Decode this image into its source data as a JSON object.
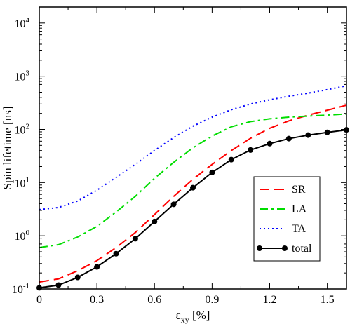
{
  "chart_data": {
    "type": "line",
    "xlabel_main": "ε",
    "xlabel_sub": "xy",
    "xlabel_unit": " [%]",
    "ylabel": "Spin lifetime [ns]",
    "xlim": [
      0,
      1.6
    ],
    "ylim": [
      0.1,
      20000
    ],
    "yscale": "log",
    "grid": false,
    "legend_position": "lower-right",
    "x_ticks": [
      {
        "value": 0,
        "label": "0"
      },
      {
        "value": 0.3,
        "label": "0.3"
      },
      {
        "value": 0.6,
        "label": "0.6"
      },
      {
        "value": 0.9,
        "label": "0.9"
      },
      {
        "value": 1.2,
        "label": "1.2"
      },
      {
        "value": 1.5,
        "label": "1.5"
      }
    ],
    "y_ticks": [
      {
        "value": 0.1,
        "base": "10",
        "exp": "-1"
      },
      {
        "value": 1,
        "base": "10",
        "exp": "0"
      },
      {
        "value": 10,
        "base": "10",
        "exp": "1"
      },
      {
        "value": 100,
        "base": "10",
        "exp": "2"
      },
      {
        "value": 1000,
        "base": "10",
        "exp": "3"
      },
      {
        "value": 10000,
        "base": "10",
        "exp": "4"
      }
    ],
    "series": [
      {
        "name": "SR",
        "color": "#ff0000",
        "style": "dashed",
        "x": [
          0,
          0.1,
          0.2,
          0.3,
          0.4,
          0.5,
          0.6,
          0.7,
          0.8,
          0.9,
          1.0,
          1.1,
          1.2,
          1.3,
          1.4,
          1.5,
          1.6
        ],
        "y": [
          0.135,
          0.155,
          0.22,
          0.34,
          0.6,
          1.15,
          2.5,
          5.5,
          11.5,
          22,
          40,
          68,
          105,
          145,
          185,
          230,
          285
        ]
      },
      {
        "name": "LA",
        "color": "#00dd00",
        "style": "dashdot",
        "x": [
          0,
          0.1,
          0.2,
          0.3,
          0.4,
          0.5,
          0.6,
          0.7,
          0.8,
          0.9,
          1.0,
          1.1,
          1.2,
          1.3,
          1.4,
          1.5,
          1.6
        ],
        "y": [
          0.6,
          0.68,
          0.95,
          1.5,
          2.8,
          5.5,
          12,
          24,
          45,
          75,
          112,
          140,
          158,
          170,
          178,
          186,
          195
        ]
      },
      {
        "name": "TA",
        "color": "#0000ff",
        "style": "dotted",
        "x": [
          0,
          0.1,
          0.2,
          0.3,
          0.4,
          0.5,
          0.6,
          0.7,
          0.8,
          0.9,
          1.0,
          1.1,
          1.2,
          1.3,
          1.4,
          1.5,
          1.6
        ],
        "y": [
          3.1,
          3.4,
          4.5,
          7.2,
          12.5,
          22,
          40,
          70,
          115,
          170,
          235,
          300,
          360,
          420,
          480,
          560,
          660
        ]
      },
      {
        "name": "total",
        "color": "#000000",
        "style": "solid",
        "markers": true,
        "x": [
          0,
          0.1,
          0.2,
          0.3,
          0.4,
          0.5,
          0.6,
          0.7,
          0.8,
          0.9,
          1.0,
          1.1,
          1.2,
          1.3,
          1.4,
          1.5,
          1.6
        ],
        "y": [
          0.105,
          0.118,
          0.165,
          0.26,
          0.46,
          0.88,
          1.85,
          3.9,
          8.0,
          15.5,
          27,
          41,
          54,
          67,
          78,
          88,
          98
        ]
      }
    ]
  }
}
